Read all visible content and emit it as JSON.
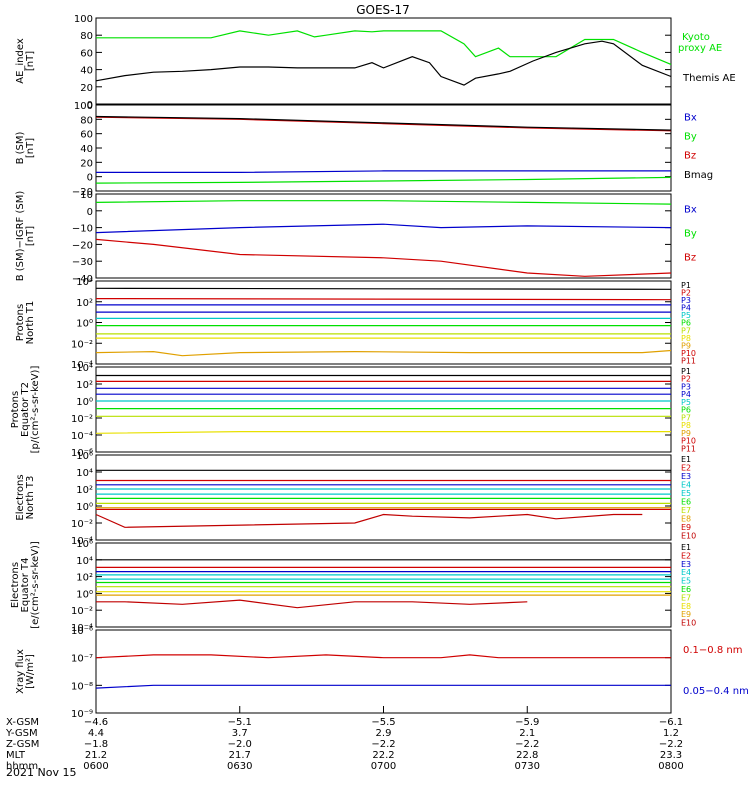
{
  "title": "GOES-17",
  "date_label": "2021 Nov 15",
  "colors": {
    "black": "#000000",
    "green": "#00e000",
    "red": "#d00000",
    "blue": "#0000cc",
    "cyan": "#00c8c8",
    "teal": "#00b0b0",
    "yellowgreen": "#b8e000",
    "yellow": "#e8e000",
    "orange": "#e0a000",
    "darkred": "#c00000"
  },
  "chart_data": [
    {
      "type": "line",
      "id": "ae",
      "ylabel": [
        "AE_index",
        "[nT]"
      ],
      "yticks": [
        "100",
        "80",
        "60",
        "40",
        "20",
        "0"
      ],
      "ylim": [
        0,
        100
      ],
      "scale": "linear",
      "series": [
        {
          "name": "Kyoto proxy AE",
          "color": "#00e000",
          "labelLines": [
            "Kyoto",
            "proxy AE"
          ],
          "x": [
            0,
            5,
            10,
            15,
            20,
            25,
            30,
            35,
            38,
            40,
            45,
            48,
            50,
            55,
            60,
            64,
            66,
            70,
            72,
            76,
            80,
            85,
            88,
            90,
            95,
            100
          ],
          "y": [
            77,
            77,
            77,
            77,
            77,
            85,
            80,
            85,
            78,
            80,
            85,
            84,
            85,
            85,
            85,
            70,
            55,
            65,
            55,
            55,
            55,
            75,
            75,
            75,
            60,
            46
          ]
        },
        {
          "name": "Themis AE",
          "color": "#000000",
          "labelLines": [
            "Themis AE"
          ],
          "x": [
            0,
            5,
            10,
            15,
            20,
            25,
            30,
            35,
            38,
            40,
            45,
            48,
            50,
            55,
            58,
            60,
            64,
            66,
            70,
            72,
            76,
            80,
            85,
            88,
            90,
            95,
            100
          ],
          "y": [
            27,
            33,
            37,
            38,
            40,
            43,
            43,
            42,
            42,
            42,
            42,
            48,
            42,
            55,
            48,
            32,
            22,
            30,
            35,
            38,
            50,
            60,
            70,
            73,
            70,
            45,
            32
          ]
        }
      ]
    },
    {
      "type": "line",
      "id": "bsm",
      "ylabel": [
        "B (SM)",
        "[nT]"
      ],
      "yticks": [
        "100",
        "80",
        "60",
        "40",
        "20",
        "0",
        "−20"
      ],
      "ylim": [
        -20,
        100
      ],
      "scale": "linear",
      "series": [
        {
          "name": "Bx",
          "color": "#0000cc",
          "x": [
            0,
            25,
            50,
            75,
            100
          ],
          "y": [
            6,
            6,
            8,
            8,
            8
          ]
        },
        {
          "name": "By",
          "color": "#00e000",
          "x": [
            0,
            25,
            50,
            75,
            100
          ],
          "y": [
            -9,
            -8,
            -6,
            -4,
            -1
          ]
        },
        {
          "name": "Bz",
          "color": "#d00000",
          "x": [
            0,
            25,
            50,
            75,
            100
          ],
          "y": [
            83,
            80,
            74,
            68,
            64
          ]
        },
        {
          "name": "Bmag",
          "color": "#000000",
          "x": [
            0,
            25,
            50,
            75,
            100
          ],
          "y": [
            84,
            81,
            75,
            69,
            65
          ]
        }
      ]
    },
    {
      "type": "line",
      "id": "bigrf",
      "ylabel": [
        "B (SM)−IGRF (SM)",
        "[nT]"
      ],
      "yticks": [
        "10",
        "0",
        "−10",
        "−20",
        "−30",
        "−40"
      ],
      "ylim": [
        -40,
        10
      ],
      "scale": "linear",
      "series": [
        {
          "name": "Bx",
          "color": "#0000cc",
          "x": [
            0,
            25,
            50,
            60,
            75,
            100
          ],
          "y": [
            -13,
            -10,
            -8,
            -10,
            -9,
            -10
          ]
        },
        {
          "name": "By",
          "color": "#00e000",
          "x": [
            0,
            25,
            50,
            75,
            100
          ],
          "y": [
            5,
            6,
            6,
            5,
            4
          ]
        },
        {
          "name": "Bz",
          "color": "#d00000",
          "x": [
            0,
            10,
            25,
            50,
            60,
            75,
            85,
            100
          ],
          "y": [
            -17,
            -20,
            -26,
            -28,
            -30,
            -37,
            -39,
            -37
          ]
        }
      ]
    },
    {
      "type": "line",
      "id": "protT1",
      "ylabel": [
        "Protons",
        "North T1"
      ],
      "yticks": [
        "10⁴",
        "10²",
        "10⁰",
        "10⁻²",
        "10⁻⁴"
      ],
      "ylim": [
        -4,
        4
      ],
      "scale": "log10",
      "series": [
        {
          "name": "P1",
          "color": "#000000",
          "x": [
            0,
            100
          ],
          "y": [
            3.3,
            3.2
          ]
        },
        {
          "name": "P2",
          "color": "#d00000",
          "x": [
            0,
            100
          ],
          "y": [
            2.3,
            2.2
          ]
        },
        {
          "name": "P3",
          "color": "#0000cc",
          "x": [
            0,
            100
          ],
          "y": [
            1.7,
            1.7
          ]
        },
        {
          "name": "P4",
          "color": "#0000cc",
          "x": [
            0,
            100
          ],
          "y": [
            1.0,
            1.0
          ]
        },
        {
          "name": "P5",
          "color": "#00c8c8",
          "x": [
            0,
            100
          ],
          "y": [
            0.4,
            0.4
          ]
        },
        {
          "name": "P6",
          "color": "#00e000",
          "x": [
            0,
            100
          ],
          "y": [
            -0.3,
            -0.3
          ]
        },
        {
          "name": "P7",
          "color": "#b8e000",
          "x": [
            0,
            100
          ],
          "y": [
            -1.1,
            -1.1
          ]
        },
        {
          "name": "P8",
          "color": "#e8e000",
          "x": [
            0,
            100
          ],
          "y": [
            -1.5,
            -1.5
          ]
        },
        {
          "name": "P9",
          "color": "#e0a000",
          "x": [
            0,
            10,
            15,
            25,
            45,
            65,
            95,
            100
          ],
          "y": [
            -2.9,
            -2.8,
            -3.2,
            -2.9,
            -2.8,
            -2.9,
            -2.9,
            -2.7
          ]
        },
        {
          "name": "P10",
          "color": "#d00000",
          "x": [],
          "y": []
        },
        {
          "name": "P11",
          "color": "#c00000",
          "x": [],
          "y": []
        }
      ]
    },
    {
      "type": "line",
      "id": "protT2",
      "ylabel": [
        "Protons",
        "Equator T2",
        "[p/(cm²-s-sr-keV)]"
      ],
      "yticks": [
        "10⁴",
        "10²",
        "10⁰",
        "10⁻²",
        "10⁻⁴",
        "10⁻⁶"
      ],
      "ylim": [
        -6,
        4
      ],
      "scale": "log10",
      "series": [
        {
          "name": "P1",
          "color": "#000000",
          "x": [
            0,
            100
          ],
          "y": [
            3.0,
            3.0
          ]
        },
        {
          "name": "P2",
          "color": "#d00000",
          "x": [
            0,
            100
          ],
          "y": [
            2.3,
            2.3
          ]
        },
        {
          "name": "P3",
          "color": "#0000cc",
          "x": [
            0,
            100
          ],
          "y": [
            1.5,
            1.5
          ]
        },
        {
          "name": "P4",
          "color": "#0000cc",
          "x": [
            0,
            100
          ],
          "y": [
            0.8,
            0.8
          ]
        },
        {
          "name": "P5",
          "color": "#00c8c8",
          "x": [
            0,
            100
          ],
          "y": [
            0.0,
            0.0
          ]
        },
        {
          "name": "P6",
          "color": "#00e000",
          "x": [
            0,
            100
          ],
          "y": [
            -0.9,
            -0.9
          ]
        },
        {
          "name": "P7",
          "color": "#b8e000",
          "x": [
            0,
            100
          ],
          "y": [
            -1.8,
            -1.8
          ]
        },
        {
          "name": "P8",
          "color": "#e8e000",
          "x": [
            0,
            25,
            50,
            100
          ],
          "y": [
            -3.8,
            -3.6,
            -3.6,
            -3.6
          ]
        },
        {
          "name": "P9",
          "color": "#e0a000",
          "x": [],
          "y": []
        },
        {
          "name": "P10",
          "color": "#d00000",
          "x": [],
          "y": []
        },
        {
          "name": "P11",
          "color": "#c00000",
          "x": [],
          "y": []
        }
      ]
    },
    {
      "type": "line",
      "id": "elecT3",
      "ylabel": [
        "Electrons",
        "North T3"
      ],
      "yticks": [
        "10⁶",
        "10⁴",
        "10²",
        "10⁰",
        "10⁻²",
        "10⁻⁴"
      ],
      "ylim": [
        -4,
        6
      ],
      "scale": "log10",
      "series": [
        {
          "name": "E1",
          "color": "#000000",
          "x": [
            0,
            100
          ],
          "y": [
            4.2,
            4.2
          ]
        },
        {
          "name": "E2",
          "color": "#d00000",
          "x": [
            0,
            100
          ],
          "y": [
            3.0,
            3.0
          ]
        },
        {
          "name": "E3",
          "color": "#0000cc",
          "x": [
            0,
            100
          ],
          "y": [
            2.5,
            2.5
          ]
        },
        {
          "name": "E4",
          "color": "#00c8c8",
          "x": [
            0,
            100
          ],
          "y": [
            2.0,
            2.0
          ]
        },
        {
          "name": "E5",
          "color": "#00c8c8",
          "x": [
            0,
            100
          ],
          "y": [
            1.4,
            1.4
          ]
        },
        {
          "name": "E6",
          "color": "#00e000",
          "x": [
            0,
            100
          ],
          "y": [
            0.9,
            0.9
          ]
        },
        {
          "name": "E7",
          "color": "#b8e000",
          "x": [
            0,
            100
          ],
          "y": [
            0.3,
            0.3
          ]
        },
        {
          "name": "E8",
          "color": "#e0a000",
          "x": [
            0,
            100
          ],
          "y": [
            -0.2,
            -0.2
          ]
        },
        {
          "name": "E9",
          "color": "#d00000",
          "x": [
            0,
            100
          ],
          "y": [
            -0.4,
            -0.4
          ]
        },
        {
          "name": "E10",
          "color": "#c00000",
          "x": [
            0,
            5,
            45,
            50,
            55,
            65,
            75,
            80,
            90,
            95
          ],
          "y": [
            -1.0,
            -2.5,
            -2.0,
            -1.0,
            -1.2,
            -1.4,
            -1.0,
            -1.5,
            -1.0,
            -1.0
          ]
        }
      ]
    },
    {
      "type": "line",
      "id": "elecT4",
      "ylabel": [
        "Electrons",
        "Equator T4",
        "[e/(cm²-s-sr-keV)]"
      ],
      "yticks": [
        "10⁶",
        "10⁴",
        "10²",
        "10⁰",
        "10⁻²",
        "10⁻⁴"
      ],
      "ylim": [
        -4,
        6
      ],
      "scale": "log10",
      "series": [
        {
          "name": "E1",
          "color": "#000000",
          "x": [
            0,
            100
          ],
          "y": [
            4.0,
            4.0
          ]
        },
        {
          "name": "E2",
          "color": "#d00000",
          "x": [
            0,
            100
          ],
          "y": [
            3.1,
            3.1
          ]
        },
        {
          "name": "E3",
          "color": "#0000cc",
          "x": [
            0,
            100
          ],
          "y": [
            2.6,
            2.6
          ]
        },
        {
          "name": "E4",
          "color": "#00c8c8",
          "x": [
            0,
            100
          ],
          "y": [
            2.2,
            2.2
          ]
        },
        {
          "name": "E5",
          "color": "#00c8c8",
          "x": [
            0,
            100
          ],
          "y": [
            1.7,
            1.7
          ]
        },
        {
          "name": "E6",
          "color": "#00e000",
          "x": [
            0,
            100
          ],
          "y": [
            1.3,
            1.3
          ]
        },
        {
          "name": "E7",
          "color": "#b8e000",
          "x": [
            0,
            100
          ],
          "y": [
            0.8,
            0.8
          ]
        },
        {
          "name": "E8",
          "color": "#e8e000",
          "x": [
            0,
            100
          ],
          "y": [
            0.2,
            0.2
          ]
        },
        {
          "name": "E9",
          "color": "#e0a000",
          "x": [
            0,
            100
          ],
          "y": [
            -0.2,
            -0.2
          ]
        },
        {
          "name": "E10",
          "color": "#c00000",
          "x": [
            0,
            5,
            15,
            25,
            35,
            45,
            55,
            65,
            75
          ],
          "y": [
            -1.0,
            -1.0,
            -1.3,
            -0.8,
            -1.7,
            -1.0,
            -1.0,
            -1.3,
            -1.0
          ]
        }
      ]
    },
    {
      "type": "line",
      "id": "xray",
      "ylabel": [
        "Xray flux",
        "[W/m²]"
      ],
      "yticks": [
        "10⁻⁶",
        "10⁻⁷",
        "10⁻⁸",
        "10⁻⁹"
      ],
      "ylim": [
        -9,
        -6
      ],
      "scale": "log10",
      "series": [
        {
          "name": "0.1−0.8 nm",
          "color": "#d00000",
          "labelLines": [
            "0.1−0.8 nm"
          ],
          "x": [
            0,
            10,
            20,
            30,
            40,
            50,
            60,
            65,
            70,
            80,
            90,
            100
          ],
          "y": [
            -7.0,
            -6.9,
            -6.9,
            -7.0,
            -6.9,
            -7.0,
            -7.0,
            -6.9,
            -7.0,
            -7.0,
            -7.0,
            -7.0
          ]
        },
        {
          "name": "0.05−0.4 nm",
          "color": "#0000cc",
          "labelLines": [
            "0.05−0.4 nm"
          ],
          "x": [
            0,
            10,
            20,
            30,
            40,
            50,
            60,
            70,
            80,
            90,
            100
          ],
          "y": [
            -8.1,
            -8.0,
            -8.0,
            -8.0,
            -8.0,
            -8.0,
            -8.0,
            -8.0,
            -8.0,
            -8.0,
            -8.0
          ]
        }
      ]
    }
  ],
  "x_axis": {
    "rows": [
      {
        "label": "X-GSM",
        "values": [
          "−4.6",
          "−5.1",
          "−5.5",
          "−5.9",
          "−6.1"
        ]
      },
      {
        "label": "Y-GSM",
        "values": [
          "4.4",
          "3.7",
          "2.9",
          "2.1",
          "1.2"
        ]
      },
      {
        "label": "Z-GSM",
        "values": [
          "−1.8",
          "−2.0",
          "−2.2",
          "−2.2",
          "−2.2"
        ]
      },
      {
        "label": "MLT",
        "values": [
          "21.2",
          "21.7",
          "22.2",
          "22.8",
          "23.3"
        ]
      },
      {
        "label": "hhmm",
        "values": [
          "0600",
          "0630",
          "0700",
          "0730",
          "0800"
        ]
      }
    ],
    "positions": [
      0,
      25,
      50,
      75,
      100
    ]
  }
}
